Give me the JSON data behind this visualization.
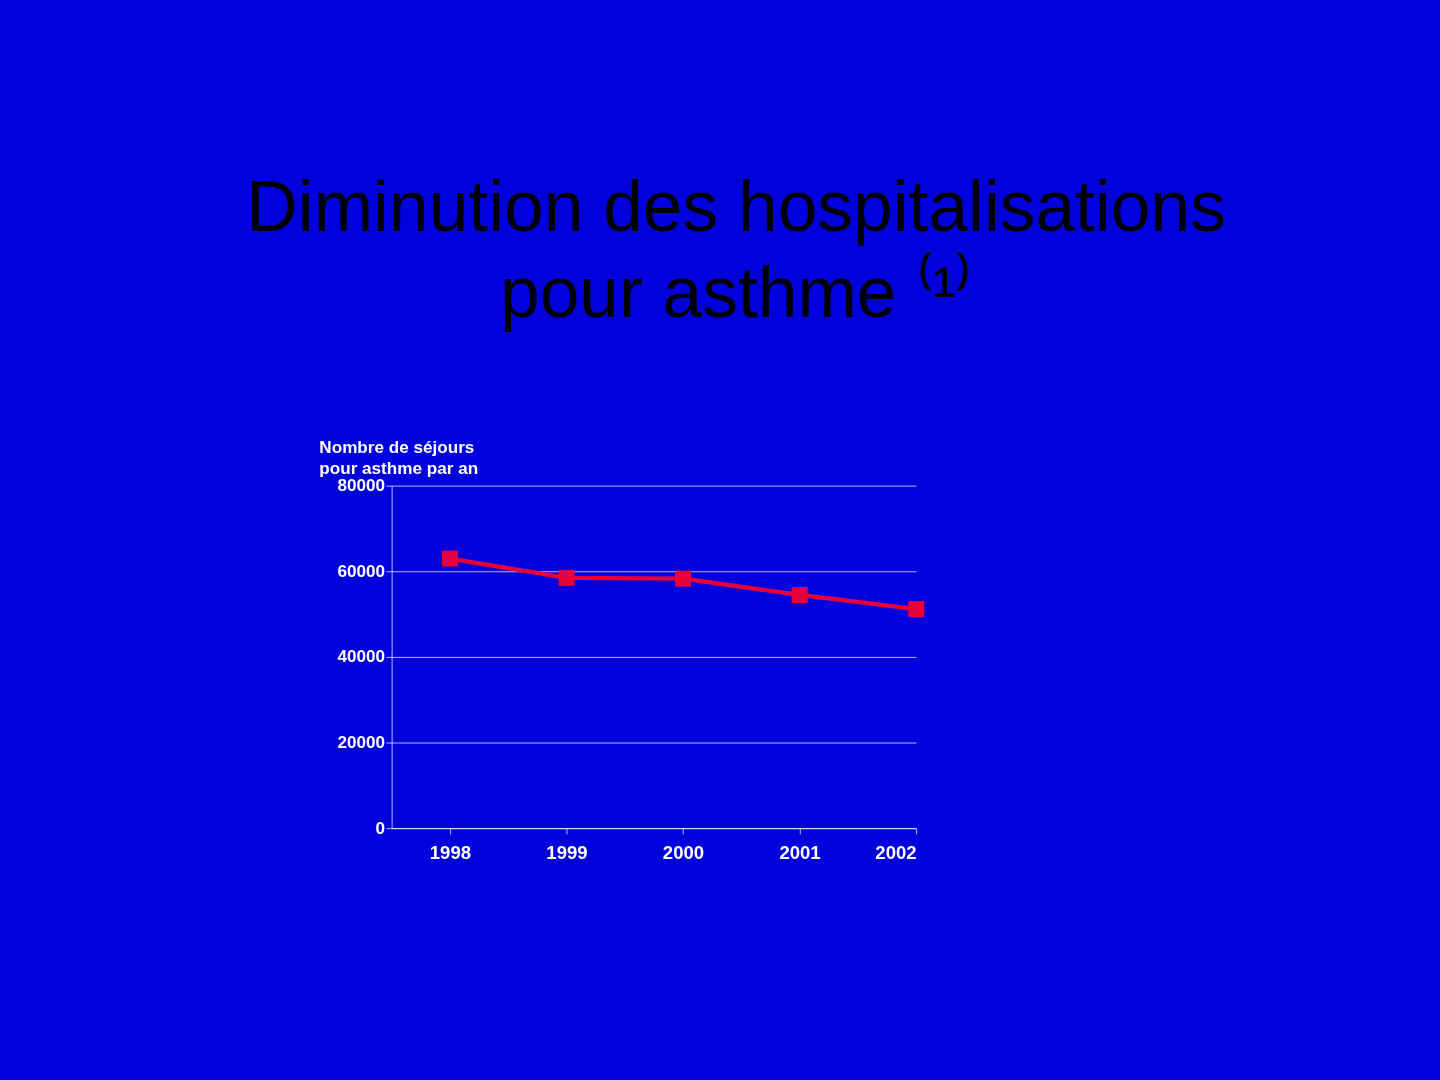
{
  "chart_data": {
    "type": "line",
    "title": "Diminution des hospitalisations pour asthme ⁽¹⁾",
    "ylabel": "Nombre de séjours pour asthme par an",
    "categories": [
      "1998",
      "1999",
      "2000",
      "2001",
      "2002"
    ],
    "series": [
      {
        "color": "#e8003a",
        "values": [
          63000,
          58500,
          58300,
          54500,
          51200
        ]
      }
    ],
    "ylim": [
      0,
      80000
    ],
    "yticks": [
      0,
      20000,
      40000,
      60000,
      80000
    ],
    "grid": "y",
    "marker": "square",
    "line_style": "solid"
  }
}
